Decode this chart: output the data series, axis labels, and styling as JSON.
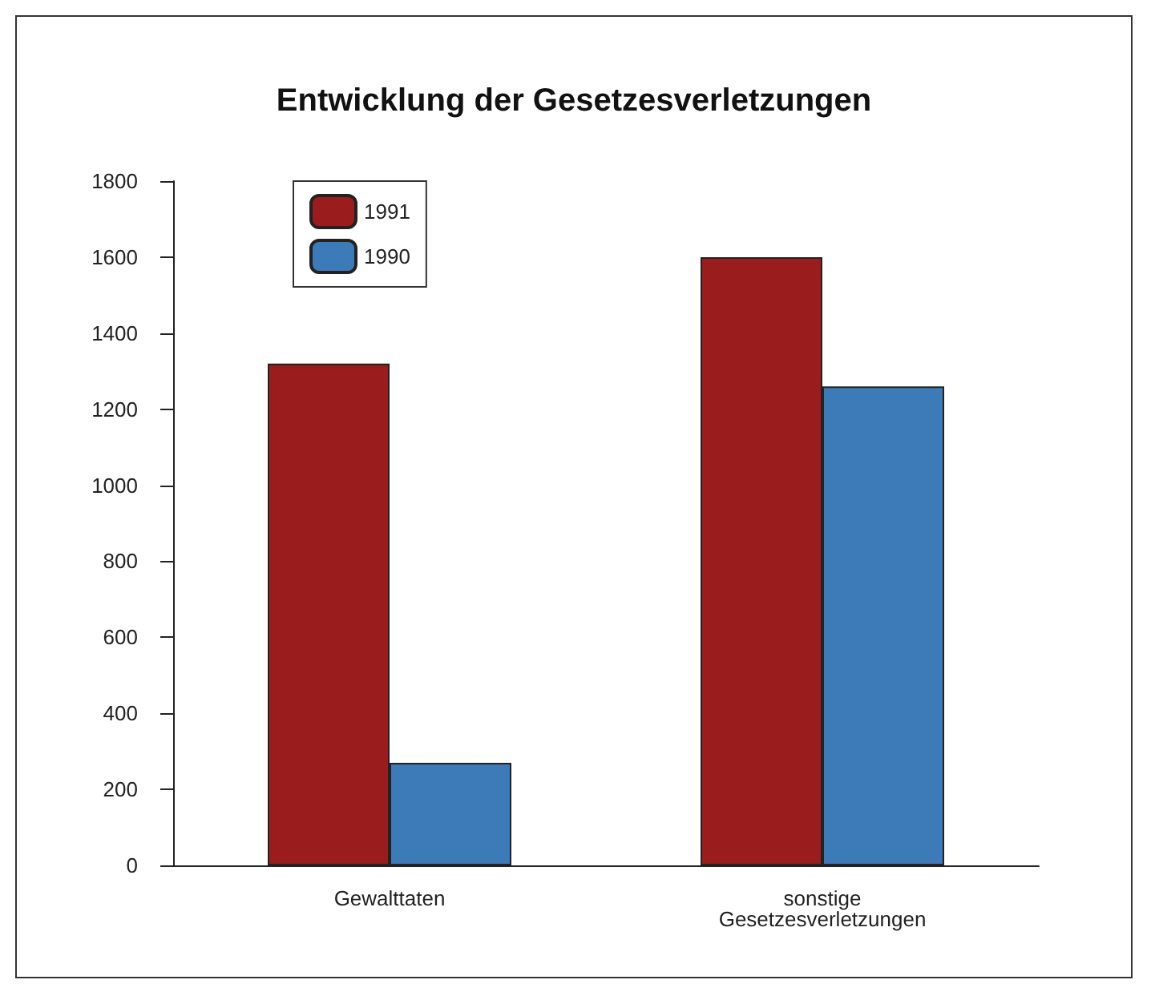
{
  "chart_data": {
    "type": "bar",
    "title": "Entwicklung der Gesetzesverletzungen",
    "categories": [
      "Gewalttaten",
      "sonstige\nGesetzesverletzungen"
    ],
    "series": [
      {
        "name": "1991",
        "color": "#9b1c1c",
        "values": [
          1320,
          1600
        ]
      },
      {
        "name": "1990",
        "color": "#3d7ab8",
        "values": [
          270,
          1260
        ]
      }
    ],
    "ylim": [
      0,
      1800
    ],
    "yticks": [
      0,
      200,
      400,
      600,
      800,
      1000,
      1200,
      1400,
      1600,
      1800
    ],
    "grid": false,
    "legend": "top left"
  }
}
